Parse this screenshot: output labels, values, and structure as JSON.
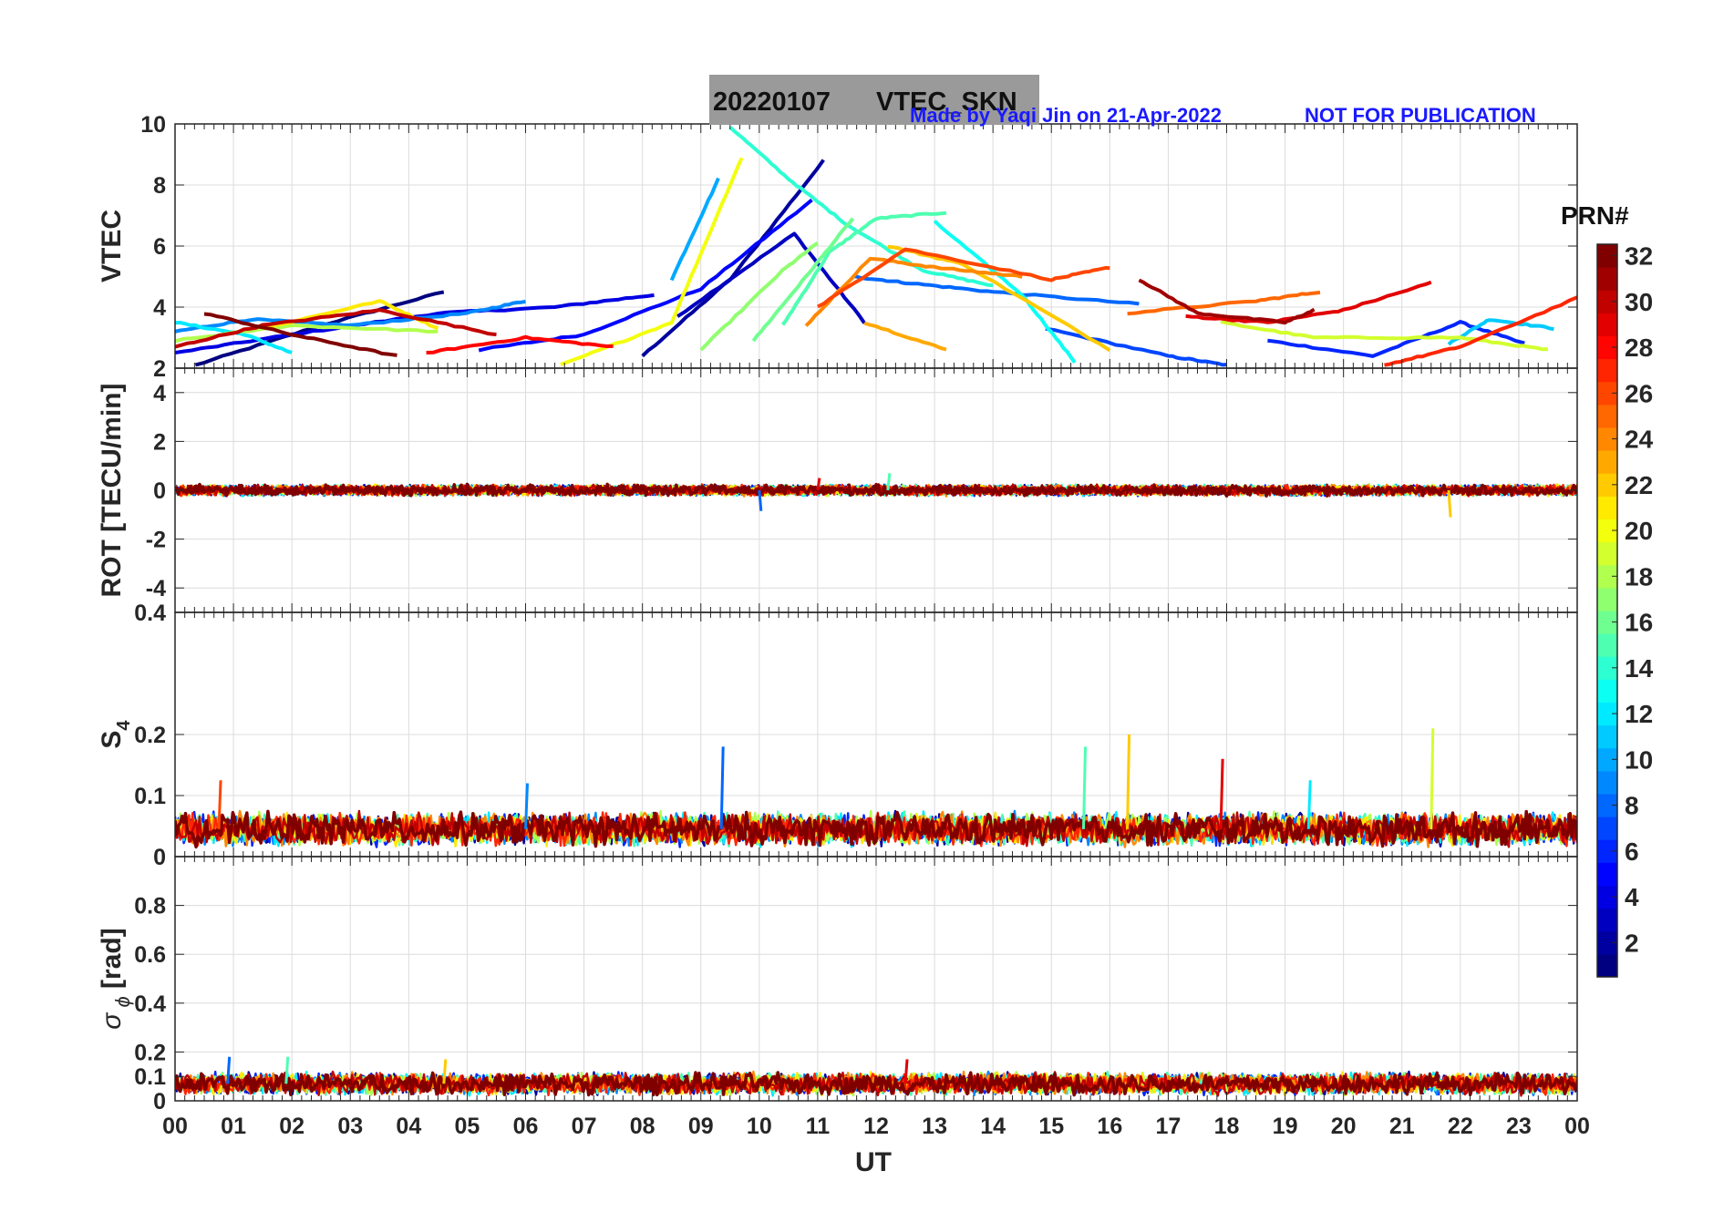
{
  "title": {
    "date": "20220107",
    "label": "VTEC_SKN"
  },
  "credit": "Made by Yaqi Jin on 21-Apr-2022",
  "notice": "NOT FOR PUBLICATION",
  "xlabel": "UT",
  "colorbar": {
    "label": "PRN#",
    "ticks": [
      "2",
      "4",
      "6",
      "8",
      "10",
      "12",
      "14",
      "16",
      "18",
      "20",
      "22",
      "24",
      "26",
      "28",
      "30",
      "32"
    ],
    "range": [
      1,
      32
    ],
    "colormap": "jet"
  },
  "chart_data": [
    {
      "type": "line",
      "panel": "VTEC",
      "ylabel": "VTEC",
      "xlim": [
        0,
        24
      ],
      "ylim": [
        2,
        10
      ],
      "xticks": [
        "00",
        "01",
        "02",
        "03",
        "04",
        "05",
        "06",
        "07",
        "08",
        "09",
        "10",
        "11",
        "12",
        "13",
        "14",
        "15",
        "16",
        "17",
        "18",
        "19",
        "20",
        "21",
        "22",
        "23",
        "00"
      ],
      "yticks": [
        "2",
        "4",
        "6",
        "8",
        "10"
      ],
      "grid": true,
      "series": [
        {
          "prn": 1,
          "points": [
            [
              0.35,
              2.1
            ],
            [
              2.5,
              3.4
            ],
            [
              4.6,
              4.5
            ]
          ]
        },
        {
          "prn": 2,
          "points": [
            [
              8.0,
              2.4
            ],
            [
              9.5,
              4.9
            ],
            [
              11.1,
              8.8
            ]
          ]
        },
        {
          "prn": 3,
          "points": [
            [
              8.6,
              3.7
            ],
            [
              10.6,
              6.4
            ],
            [
              11.8,
              3.5
            ]
          ]
        },
        {
          "prn": 4,
          "points": [
            [
              0.0,
              2.5
            ],
            [
              2.0,
              3.1
            ],
            [
              4.5,
              3.8
            ],
            [
              6.5,
              4.0
            ],
            [
              8.2,
              4.4
            ]
          ]
        },
        {
          "prn": 5,
          "points": [
            [
              5.2,
              2.6
            ],
            [
              7.0,
              3.1
            ],
            [
              9.0,
              4.6
            ],
            [
              10.9,
              7.5
            ]
          ]
        },
        {
          "prn": 6,
          "points": [
            [
              18.7,
              2.9
            ],
            [
              20.5,
              2.4
            ],
            [
              22.0,
              3.5
            ],
            [
              23.1,
              2.8
            ]
          ]
        },
        {
          "prn": 7,
          "points": [
            [
              14.9,
              3.3
            ],
            [
              17.0,
              2.4
            ],
            [
              18.0,
              2.1
            ]
          ]
        },
        {
          "prn": 8,
          "points": [
            [
              11.6,
              5.0
            ],
            [
              12.5,
              4.8
            ],
            [
              14.0,
              4.5
            ],
            [
              16.5,
              4.1
            ]
          ]
        },
        {
          "prn": 9,
          "points": [
            [
              0.0,
              3.2
            ],
            [
              1.3,
              3.6
            ],
            [
              3.0,
              3.4
            ],
            [
              5.0,
              3.8
            ],
            [
              6.0,
              4.2
            ]
          ]
        },
        {
          "prn": 10,
          "points": [
            [
              8.5,
              4.9
            ],
            [
              9.3,
              8.2
            ]
          ]
        },
        {
          "prn": 11,
          "points": [
            [
              21.8,
              2.8
            ],
            [
              22.5,
              3.6
            ],
            [
              23.6,
              3.3
            ]
          ]
        },
        {
          "prn": 12,
          "points": [
            [
              0.0,
              3.5
            ],
            [
              1.2,
              3.1
            ],
            [
              2.0,
              2.5
            ]
          ]
        },
        {
          "prn": 13,
          "points": [
            [
              13.0,
              6.8
            ],
            [
              14.5,
              4.4
            ],
            [
              15.4,
              2.2
            ]
          ]
        },
        {
          "prn": 14,
          "points": [
            [
              9.5,
              9.9
            ],
            [
              10.5,
              8.2
            ],
            [
              11.5,
              6.7
            ],
            [
              12.8,
              5.2
            ],
            [
              14.0,
              4.7
            ]
          ]
        },
        {
          "prn": 15,
          "points": [
            [
              10.4,
              3.4
            ],
            [
              11.2,
              5.8
            ],
            [
              12.0,
              6.9
            ],
            [
              13.2,
              7.1
            ]
          ]
        },
        {
          "prn": 16,
          "points": [
            [
              9.9,
              2.9
            ],
            [
              10.8,
              5.0
            ],
            [
              11.6,
              6.9
            ]
          ]
        },
        {
          "prn": 17,
          "points": [
            [
              9.0,
              2.6
            ],
            [
              10.4,
              5.2
            ],
            [
              11.0,
              6.1
            ]
          ]
        },
        {
          "prn": 18,
          "points": [
            [
              0.0,
              2.9
            ],
            [
              2.0,
              3.4
            ],
            [
              4.5,
              3.2
            ]
          ]
        },
        {
          "prn": 19,
          "points": [
            [
              17.9,
              3.5
            ],
            [
              19.5,
              3.0
            ],
            [
              22.0,
              3.0
            ],
            [
              23.5,
              2.6
            ]
          ]
        },
        {
          "prn": 20,
          "points": [
            [
              6.6,
              2.1
            ],
            [
              8.5,
              3.5
            ],
            [
              9.7,
              8.9
            ]
          ]
        },
        {
          "prn": 21,
          "points": [
            [
              1.5,
              3.3
            ],
            [
              3.5,
              4.2
            ],
            [
              4.5,
              3.3
            ]
          ]
        },
        {
          "prn": 22,
          "points": [
            [
              12.2,
              6.0
            ],
            [
              13.5,
              5.4
            ],
            [
              16.0,
              2.6
            ]
          ]
        },
        {
          "prn": 23,
          "points": [
            [
              11.8,
              3.5
            ],
            [
              13.2,
              2.6
            ]
          ]
        },
        {
          "prn": 24,
          "points": [
            [
              10.8,
              3.4
            ],
            [
              11.9,
              5.6
            ],
            [
              13.0,
              5.3
            ],
            [
              14.5,
              5.0
            ]
          ]
        },
        {
          "prn": 25,
          "points": [
            [
              16.3,
              3.8
            ],
            [
              18.5,
              4.2
            ],
            [
              19.6,
              4.5
            ]
          ]
        },
        {
          "prn": 26,
          "points": [
            [
              11.0,
              4.0
            ],
            [
              12.5,
              5.9
            ],
            [
              15.0,
              4.9
            ],
            [
              16.0,
              5.3
            ]
          ]
        },
        {
          "prn": 27,
          "points": [
            [
              20.7,
              2.1
            ],
            [
              22.0,
              2.7
            ],
            [
              24.0,
              4.3
            ]
          ]
        },
        {
          "prn": 28,
          "points": [
            [
              4.3,
              2.5
            ],
            [
              6.0,
              3.0
            ],
            [
              7.5,
              2.7
            ]
          ]
        },
        {
          "prn": 29,
          "points": [
            [
              17.3,
              3.7
            ],
            [
              18.7,
              3.5
            ],
            [
              20.0,
              3.9
            ],
            [
              21.5,
              4.8
            ]
          ]
        },
        {
          "prn": 30,
          "points": [
            [
              0.0,
              2.7
            ],
            [
              1.5,
              3.4
            ],
            [
              3.5,
              3.9
            ],
            [
              5.5,
              3.1
            ]
          ]
        },
        {
          "prn": 31,
          "points": [
            [
              16.5,
              4.9
            ],
            [
              17.5,
              3.8
            ],
            [
              19.0,
              3.5
            ],
            [
              19.5,
              3.9
            ]
          ]
        },
        {
          "prn": 32,
          "points": [
            [
              0.5,
              3.8
            ],
            [
              2.0,
              3.1
            ],
            [
              3.8,
              2.4
            ]
          ]
        }
      ]
    },
    {
      "type": "line",
      "panel": "ROT",
      "ylabel": "ROT [TECU/min]",
      "xlim": [
        0,
        24
      ],
      "ylim": [
        -5,
        5
      ],
      "yticks": [
        "-4",
        "-2",
        "0",
        "2",
        "4"
      ],
      "grid": true,
      "baseline": 0,
      "noise": 0.25,
      "spikes": [
        [
          10.0,
          -0.85
        ],
        [
          12.2,
          0.7
        ],
        [
          21.8,
          -1.1
        ],
        [
          11.0,
          0.5
        ]
      ]
    },
    {
      "type": "line",
      "panel": "S4",
      "ylabel": "S4",
      "xlim": [
        0,
        24
      ],
      "ylim": [
        0,
        0.4
      ],
      "yticks": [
        "0",
        "0.1",
        "0.2",
        "0.4"
      ],
      "grid": true,
      "baseline": 0.045,
      "noise": 0.03,
      "spikes": [
        [
          9.35,
          0.18
        ],
        [
          15.55,
          0.18
        ],
        [
          16.3,
          0.2
        ],
        [
          17.9,
          0.16
        ],
        [
          19.4,
          0.125
        ],
        [
          21.5,
          0.21
        ],
        [
          0.75,
          0.125
        ],
        [
          6.0,
          0.12
        ]
      ]
    },
    {
      "type": "line",
      "panel": "SigmaPhi",
      "ylabel": "σ ϕ [rad]",
      "xlim": [
        0,
        24
      ],
      "ylim": [
        0,
        1
      ],
      "yticks": [
        "0",
        "0.1",
        "0.2",
        "0.4",
        "0.6",
        "0.8"
      ],
      "grid": true,
      "baseline": 0.07,
      "noise": 0.05,
      "spikes": [
        [
          0.9,
          0.18
        ],
        [
          1.9,
          0.18
        ],
        [
          4.6,
          0.17
        ],
        [
          12.5,
          0.17
        ]
      ]
    }
  ]
}
